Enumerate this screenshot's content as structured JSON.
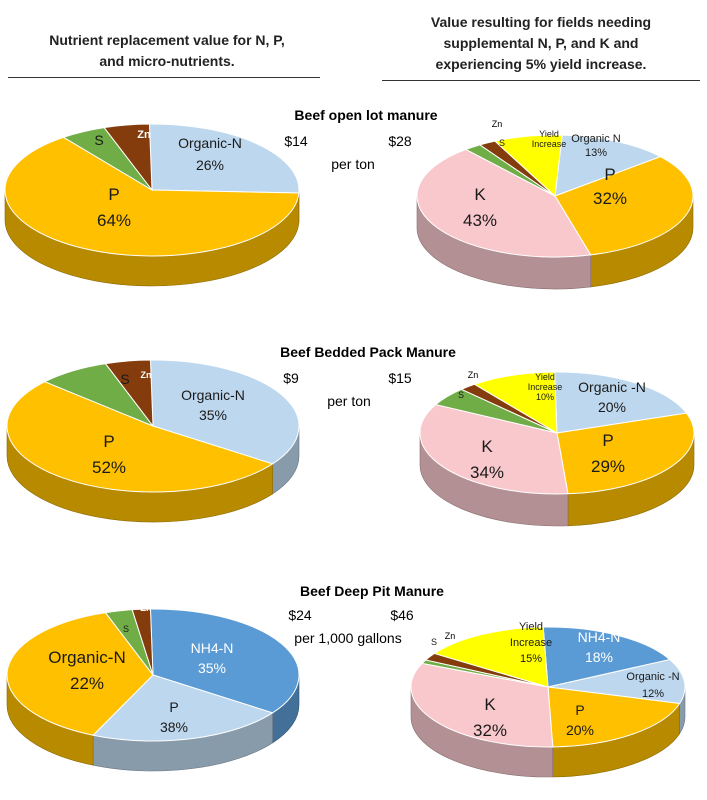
{
  "headers": {
    "left_lines": [
      "Nutrient replacement value for N, P,",
      "and micro-nutrients."
    ],
    "right_lines": [
      "Value resulting for fields needing",
      "supplemental N, P, and K and",
      "experiencing 5% yield increase."
    ]
  },
  "colors": {
    "P": "#ffc000",
    "S": "#70ad47",
    "Zn": "#843c0c",
    "Organic-N": "#bdd7ee",
    "K": "#f8c8cc",
    "Yield": "#ffff00",
    "NH4-N": "#5b9bd5"
  },
  "sections": [
    {
      "title": "Beef open lot manure",
      "value_left": "$14",
      "value_right": "$28",
      "unit": "per ton"
    },
    {
      "title": "Beef Bedded Pack Manure",
      "value_left": "$9",
      "value_right": "$15",
      "unit": "per ton"
    },
    {
      "title": "Beef Deep Pit Manure",
      "value_left": "$24",
      "value_right": "$46",
      "unit": "per 1,000 gallons"
    }
  ],
  "chart_data": [
    {
      "type": "pie",
      "title": "Beef open lot manure",
      "side": "nutrient replacement",
      "slices": [
        {
          "name": "Organic-N",
          "label": "Organic-N",
          "pct_label": "26%",
          "value": 26
        },
        {
          "name": "P",
          "label": "P",
          "pct_label": "64%",
          "value": 64
        },
        {
          "name": "S",
          "label": "S",
          "pct_label": "",
          "value": 5
        },
        {
          "name": "Zn",
          "label": "Zn",
          "pct_label": "",
          "value": 5
        }
      ]
    },
    {
      "type": "pie",
      "title": "Beef open lot manure",
      "side": "supplemental N, P, K with yield increase",
      "slices": [
        {
          "name": "Organic-N",
          "label": "Organic N",
          "pct_label": "13%",
          "value": 13
        },
        {
          "name": "P",
          "label": "P",
          "pct_label": "32%",
          "value": 32
        },
        {
          "name": "K",
          "label": "K",
          "pct_label": "43%",
          "value": 43
        },
        {
          "name": "S",
          "label": "S",
          "pct_label": "",
          "value": 2
        },
        {
          "name": "Zn",
          "label": "Zn",
          "pct_label": "",
          "value": 2
        },
        {
          "name": "Yield",
          "label": "Yield Increase",
          "pct_label": "",
          "value": 8
        }
      ]
    },
    {
      "type": "pie",
      "title": "Beef Bedded Pack Manure",
      "side": "nutrient replacement",
      "slices": [
        {
          "name": "Organic-N",
          "label": "Organic-N",
          "pct_label": "35%",
          "value": 35
        },
        {
          "name": "P",
          "label": "P",
          "pct_label": "52%",
          "value": 52
        },
        {
          "name": "S",
          "label": "S",
          "pct_label": "",
          "value": 8
        },
        {
          "name": "Zn",
          "label": "Zn",
          "pct_label": "",
          "value": 5
        }
      ]
    },
    {
      "type": "pie",
      "title": "Beef Bedded Pack Manure",
      "side": "supplemental N, P, K with yield increase",
      "slices": [
        {
          "name": "Organic-N",
          "label": "Organic -N",
          "pct_label": "20%",
          "value": 20
        },
        {
          "name": "P",
          "label": "P",
          "pct_label": "29%",
          "value": 29
        },
        {
          "name": "K",
          "label": "K",
          "pct_label": "34%",
          "value": 34
        },
        {
          "name": "S",
          "label": "S",
          "pct_label": "",
          "value": 5
        },
        {
          "name": "Zn",
          "label": "Zn",
          "pct_label": "",
          "value": 2
        },
        {
          "name": "Yield",
          "label": "Yield Increase",
          "pct_label": "10%",
          "value": 10
        }
      ]
    },
    {
      "type": "pie",
      "title": "Beef Deep Pit Manure",
      "side": "nutrient replacement",
      "slices": [
        {
          "name": "NH4-N",
          "label": "NH4-N",
          "pct_label": "35%",
          "value": 35
        },
        {
          "name": "Organic-N",
          "label": "Organic-N",
          "pct_label": "22%",
          "value": 22
        },
        {
          "name": "P",
          "label": "P",
          "pct_label": "38%",
          "value": 38
        },
        {
          "name": "S",
          "label": "S",
          "pct_label": "",
          "value": 3
        },
        {
          "name": "Zn",
          "label": "Zn",
          "pct_label": "",
          "value": 2
        }
      ]
    },
    {
      "type": "pie",
      "title": "Beef Deep Pit Manure",
      "side": "supplemental N, P, K with yield increase",
      "slices": [
        {
          "name": "NH4-N",
          "label": "NH4-N",
          "pct_label": "18%",
          "value": 18
        },
        {
          "name": "Organic-N",
          "label": "Organic -N",
          "pct_label": "12%",
          "value": 12
        },
        {
          "name": "P",
          "label": "P",
          "pct_label": "20%",
          "value": 20
        },
        {
          "name": "K",
          "label": "K",
          "pct_label": "32%",
          "value": 32
        },
        {
          "name": "S",
          "label": "S",
          "pct_label": "",
          "value": 1
        },
        {
          "name": "Zn",
          "label": "Zn",
          "pct_label": "",
          "value": 2
        },
        {
          "name": "Yield",
          "label": "Yield Increase",
          "pct_label": "15%",
          "value": 15
        }
      ]
    }
  ]
}
